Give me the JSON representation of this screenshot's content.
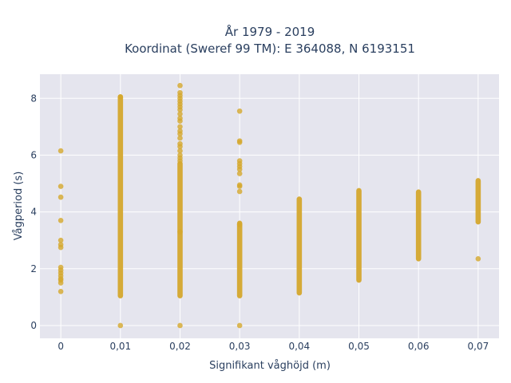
{
  "chart_data": {
    "type": "scatter",
    "title_line1": "År 1979 - 2019",
    "title_line2": "Koordinat (Sweref 99 TM): E 364088, N 6193151",
    "xlabel": "Signifikant våghöjd (m)",
    "ylabel": "Vågperiod (s)",
    "x_tick_values": [
      0,
      0.01,
      0.02,
      0.03,
      0.04,
      0.05,
      0.06,
      0.07
    ],
    "x_tick_labels": [
      "0",
      "0,01",
      "0,02",
      "0,03",
      "0,04",
      "0,05",
      "0,06",
      "0,07"
    ],
    "y_tick_values": [
      0,
      2,
      4,
      6,
      8
    ],
    "y_tick_labels": [
      "0",
      "2",
      "4",
      "6",
      "8"
    ],
    "xlim": [
      -0.0035,
      0.0735
    ],
    "ylim": [
      -0.45,
      8.85
    ],
    "grid": true,
    "plot_background": "#e5e5ee",
    "grid_color": "#ffffff",
    "marker_color": "#d4a72c",
    "series": [
      {
        "columns": [
          {
            "x": 0,
            "ranges": [],
            "points": [
              6.15,
              4.9,
              4.52,
              3.7,
              3.0,
              2.85,
              2.75,
              2.05,
              1.95,
              1.85,
              1.75,
              1.65,
              1.6,
              1.5,
              1.2
            ]
          },
          {
            "x": 0.01,
            "ranges": [
              [
                1.05,
                8.05
              ]
            ],
            "points": [
              0,
              8.05
            ]
          },
          {
            "x": 0.02,
            "ranges": [
              [
                1.05,
                5.7
              ]
            ],
            "points": [
              0,
              8.45,
              8.2,
              8.1,
              8.0,
              7.9,
              7.8,
              7.7,
              7.6,
              7.45,
              7.3,
              7.2,
              7.0,
              6.85,
              6.75,
              6.6,
              6.4,
              6.3,
              6.15,
              6.0,
              5.9,
              5.8,
              3.3
            ]
          },
          {
            "x": 0.03,
            "ranges": [
              [
                1.05,
                3.6
              ]
            ],
            "points": [
              0,
              7.55,
              6.5,
              6.45,
              5.8,
              5.7,
              5.6,
              5.5,
              5.35,
              4.95,
              4.9,
              4.72,
              3.55
            ]
          },
          {
            "x": 0.04,
            "ranges": [
              [
                1.15,
                4.45
              ]
            ],
            "points": []
          },
          {
            "x": 0.05,
            "ranges": [
              [
                1.6,
                4.75
              ]
            ],
            "points": []
          },
          {
            "x": 0.06,
            "ranges": [
              [
                2.35,
                4.7
              ]
            ],
            "points": []
          },
          {
            "x": 0.07,
            "ranges": [
              [
                3.65,
                5.1
              ]
            ],
            "points": [
              2.35
            ]
          }
        ]
      }
    ]
  }
}
